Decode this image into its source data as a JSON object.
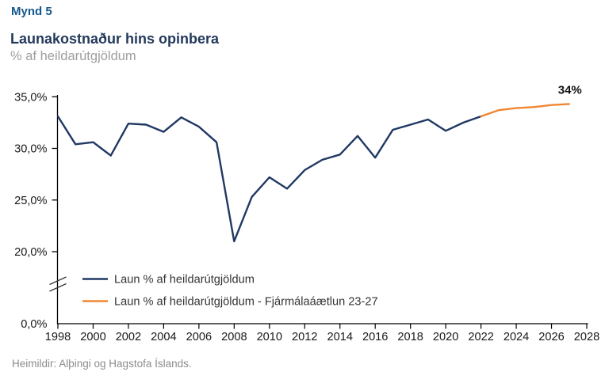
{
  "header": {
    "figure_label": "Mynd 5",
    "title": "Launakostnaður hins opinbera",
    "subtitle": "% af heildarútgjöldum"
  },
  "source": "Heimildir: Alþingi og Hagstofa Íslands.",
  "colors": {
    "navy": "#203864",
    "orange": "#F08632",
    "figure_label": "#14588F",
    "title": "#233A5C",
    "subtitle": "#9E9E9E",
    "source_text": "#8C8C8C",
    "axis": "#000000"
  },
  "chart_data": {
    "type": "line",
    "title": "Launakostnaður hins opinbera",
    "subtitle": "% af heildarútgjöldum",
    "end_label": "34%",
    "axis_break": true,
    "grid": false,
    "legend_position": "inside-bottom-left",
    "ylim": "broken axis: 0,0% then 20,0%–35,0%",
    "y_axis": [
      {
        "value": 35,
        "label": "35,0%"
      },
      {
        "value": 30,
        "label": "30,0%"
      },
      {
        "value": 25,
        "label": "25,0%"
      },
      {
        "value": 20,
        "label": "20,0%"
      },
      {
        "value": 0,
        "label": "0,0%"
      }
    ],
    "x_ticks": [
      1998,
      2000,
      2002,
      2004,
      2006,
      2008,
      2010,
      2012,
      2014,
      2016,
      2018,
      2020,
      2022,
      2024,
      2026,
      2028
    ],
    "series": [
      {
        "name": "Laun % af heildarútgjöldum",
        "color_key": "navy",
        "x": [
          1998,
          1999,
          2000,
          2001,
          2002,
          2003,
          2004,
          2005,
          2006,
          2007,
          2008,
          2009,
          2010,
          2011,
          2012,
          2013,
          2014,
          2015,
          2016,
          2017,
          2018,
          2019,
          2020,
          2021,
          2022
        ],
        "values": [
          33.1,
          30.4,
          30.6,
          29.3,
          32.4,
          32.3,
          31.6,
          33.0,
          32.1,
          30.6,
          21.0,
          25.3,
          27.2,
          26.1,
          27.9,
          28.9,
          29.4,
          31.2,
          29.1,
          31.8,
          32.3,
          32.8,
          31.7,
          32.5,
          33.1
        ]
      },
      {
        "name": "Laun % af heildarútgjöldum - Fjármálaáætlun 23-27",
        "color_key": "orange",
        "x": [
          2022,
          2023,
          2024,
          2025,
          2026,
          2027
        ],
        "values": [
          33.1,
          33.7,
          33.9,
          34.0,
          34.2,
          34.3
        ]
      }
    ]
  }
}
